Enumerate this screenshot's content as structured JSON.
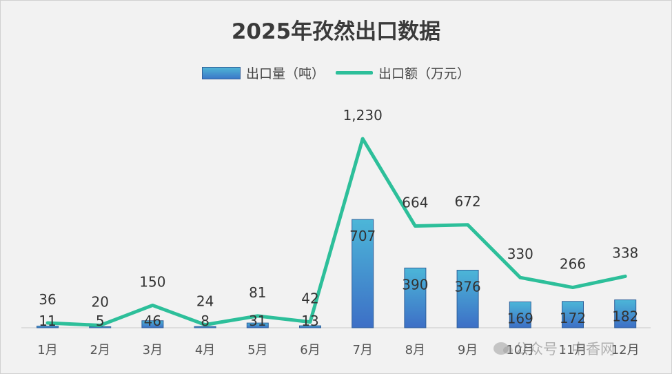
{
  "chart_data": {
    "type": "bar",
    "title": "2025年孜然出口数据",
    "categories": [
      "1月",
      "2月",
      "3月",
      "4月",
      "5月",
      "6月",
      "7月",
      "8月",
      "9月",
      "10月",
      "11月",
      "12月"
    ],
    "series": [
      {
        "name": "出口量（吨）",
        "type": "bar",
        "values": [
          11,
          5,
          46,
          8,
          31,
          13,
          707,
          390,
          376,
          169,
          172,
          182
        ],
        "labels": [
          "11",
          "5",
          "46",
          "8",
          "31",
          "13",
          "707",
          "390",
          "376",
          "169",
          "172",
          "182"
        ],
        "color": "#3f9fd4"
      },
      {
        "name": "出口额（万元）",
        "type": "line",
        "values": [
          36,
          20,
          150,
          24,
          81,
          42,
          1230,
          664,
          672,
          330,
          266,
          338
        ],
        "labels": [
          "36",
          "20",
          "150",
          "24",
          "81",
          "42",
          "1,230",
          "664",
          "672",
          "330",
          "266",
          "338"
        ],
        "color": "#2dbf9a"
      }
    ],
    "legend_position": "top",
    "grid": false
  },
  "watermark": "公众号 · 中香网"
}
